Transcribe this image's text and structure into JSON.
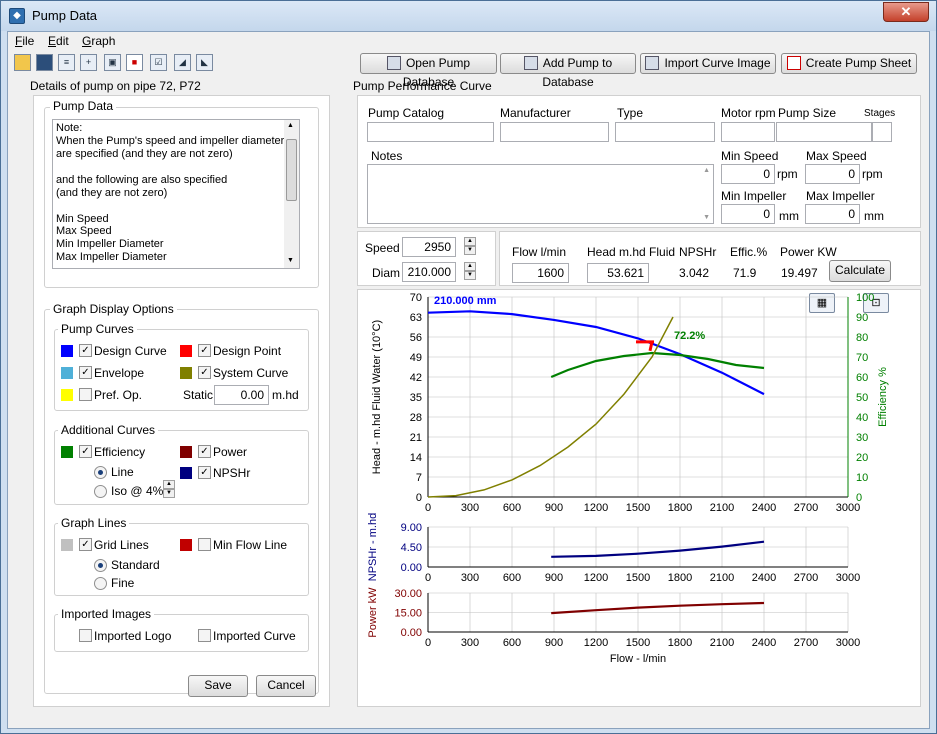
{
  "window": {
    "title": "Pump Data",
    "close": "✕"
  },
  "menu": [
    "File",
    "Edit",
    "Graph"
  ],
  "menu_mnemonic": [
    "F",
    "E",
    "G"
  ],
  "menu_rest": [
    "ile",
    "dit",
    "raph"
  ],
  "toolbar_buttons": {
    "open_db": "Open Pump Database",
    "add_pump": "Add Pump to Database",
    "import_curve": "Import Curve Image",
    "create_sheet": "Create Pump Sheet"
  },
  "left": {
    "details_title": "Details of pump on pipe 72, P72",
    "pump_data_title": "Pump Data",
    "notes_lines": [
      "Note:",
      "When the Pump's speed and impeller diameter",
      "are specified (and they are not zero)",
      "",
      "and the following are also specified",
      "(and they are not zero)",
      "",
      "Min Speed",
      "Max Speed",
      "Min Impeller Diameter",
      "Max Impeller Diameter"
    ],
    "graph_options_title": "Graph Display Options",
    "pump_curves": {
      "title": "Pump Curves",
      "design_curve": "Design Curve",
      "design_point": "Design Point",
      "envelope": "Envelope",
      "system_curve": "System Curve",
      "pref_op": "Pref. Op.",
      "static_label": "Static",
      "static_value": "0.00",
      "static_unit": "m.hd"
    },
    "additional": {
      "title": "Additional Curves",
      "efficiency": "Efficiency",
      "power": "Power",
      "line": "Line",
      "npshr": "NPSHr",
      "iso_label": "Iso @",
      "iso_value": "4%"
    },
    "graph_lines": {
      "title": "Graph Lines",
      "grid_lines": "Grid Lines",
      "min_flow": "Min Flow Line",
      "standard": "Standard",
      "fine": "Fine"
    },
    "imported": {
      "title": "Imported Images",
      "logo": "Imported Logo",
      "curve": "Imported Curve"
    },
    "save": "Save",
    "cancel": "Cancel"
  },
  "right": {
    "title": "Pump Performance Curve",
    "labels": {
      "catalog": "Pump Catalog",
      "manufacturer": "Manufacturer",
      "type": "Type",
      "motor_rpm": "Motor rpm",
      "pump_size": "Pump Size",
      "stages": "Stages",
      "notes": "Notes",
      "min_speed": "Min Speed",
      "max_speed": "Max Speed",
      "min_impeller": "Min Impeller",
      "max_impeller": "Max Impeller"
    },
    "values": {
      "min_speed": "0",
      "max_speed": "0",
      "min_impeller": "0",
      "max_impeller": "0"
    },
    "units": {
      "rpm": "rpm",
      "mm": "mm"
    },
    "speed_label": "Speed",
    "speed": "2950",
    "diam_label": "Diam",
    "diam": "210.000",
    "calc_headers": {
      "flow": "Flow l/min",
      "head": "Head m.hd Fluid",
      "npshr": "NPSHr",
      "effic": "Effic.%",
      "power": "Power KW"
    },
    "calc_values": {
      "flow": "1600",
      "head": "53.621",
      "npshr": "3.042",
      "effic": "71.9",
      "power": "19.497"
    },
    "calculate": "Calculate"
  },
  "colors": {
    "design_curve": "#0000ff",
    "design_point": "#ff0000",
    "envelope": "#4fb0d8",
    "system_curve": "#808000",
    "pref_op": "#ffff00",
    "efficiency": "#008000",
    "power": "#800000",
    "npshr": "#000080",
    "grid": "#c0c0c0"
  },
  "chart_data": [
    {
      "type": "line",
      "title": "210.000 mm",
      "xlabel": "",
      "ylabel": "Head - m.hd Fluid Water (10°C)",
      "y2label": "Efficiency %",
      "xlim": [
        0,
        3000
      ],
      "ylim": [
        0,
        70
      ],
      "y2lim": [
        0,
        100
      ],
      "xticks": [
        "0",
        "300",
        "600",
        "900",
        "1200",
        "1500",
        "1800",
        "2100",
        "2400",
        "2700",
        "3000"
      ],
      "yticks": [
        "0",
        "7",
        "14",
        "21",
        "28",
        "35",
        "42",
        "49",
        "56",
        "63",
        "70"
      ],
      "y2ticks": [
        "0",
        "10",
        "20",
        "30",
        "40",
        "50",
        "60",
        "70",
        "80",
        "90",
        "100"
      ],
      "efficiency_label": "72.2%",
      "series": [
        {
          "name": "Design Curve",
          "axis": "left",
          "x": [
            0,
            300,
            600,
            900,
            1200,
            1500,
            1800,
            2100,
            2400
          ],
          "y": [
            64.5,
            65,
            64,
            62,
            59.5,
            55.5,
            50,
            43.5,
            36
          ]
        },
        {
          "name": "Efficiency",
          "axis": "right",
          "x": [
            880,
            1000,
            1200,
            1400,
            1600,
            1800,
            2000,
            2200,
            2400
          ],
          "y": [
            60,
            63.5,
            68,
            70.5,
            72,
            71,
            69,
            66,
            64.5
          ]
        },
        {
          "name": "System Curve",
          "axis": "left",
          "x": [
            0,
            200,
            400,
            600,
            800,
            1000,
            1200,
            1400,
            1600,
            1750
          ],
          "y": [
            0,
            0.5,
            2.5,
            6,
            11,
            17.5,
            25.5,
            36,
            49,
            63
          ]
        }
      ],
      "design_point": {
        "x": 1600,
        "y": 53.6
      }
    },
    {
      "type": "line",
      "ylabel": "NPSHr - m.hd",
      "xlim": [
        0,
        3000
      ],
      "ylim": [
        0,
        9
      ],
      "xticks": [
        "0",
        "300",
        "600",
        "900",
        "1200",
        "1500",
        "1800",
        "2100",
        "2400",
        "2700",
        "3000"
      ],
      "yticks": [
        "0.00",
        "4.50",
        "9.00"
      ],
      "series": [
        {
          "name": "NPSHr",
          "x": [
            880,
            1200,
            1500,
            1800,
            2100,
            2400
          ],
          "y": [
            2.3,
            2.5,
            3.0,
            3.7,
            4.6,
            5.7
          ]
        }
      ]
    },
    {
      "type": "line",
      "ylabel": "Power kW",
      "xlabel": "Flow - l/min",
      "xlim": [
        0,
        3000
      ],
      "ylim": [
        0,
        30
      ],
      "xticks": [
        "0",
        "300",
        "600",
        "900",
        "1200",
        "1500",
        "1800",
        "2100",
        "2400",
        "2700",
        "3000"
      ],
      "yticks": [
        "0.00",
        "15.00",
        "30.00"
      ],
      "series": [
        {
          "name": "Power",
          "x": [
            880,
            1200,
            1500,
            1800,
            2100,
            2400
          ],
          "y": [
            14.5,
            16.8,
            18.8,
            20.2,
            21.4,
            22.3
          ]
        }
      ]
    }
  ]
}
